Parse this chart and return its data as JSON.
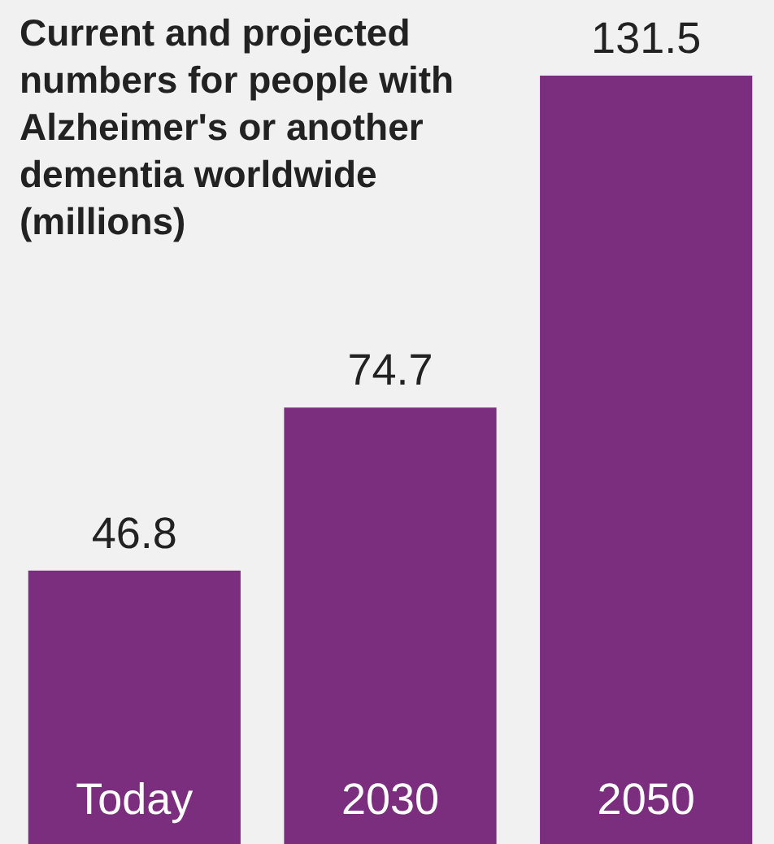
{
  "chart_data": {
    "type": "bar",
    "title": "Current and projected numbers for people with Alzheimer's or another dementia worldwide (millions)",
    "categories": [
      "Today",
      "2030",
      "2050"
    ],
    "values": [
      46.8,
      74.7,
      131.5
    ],
    "color": "#7b2d7e",
    "data_labels": true
  }
}
